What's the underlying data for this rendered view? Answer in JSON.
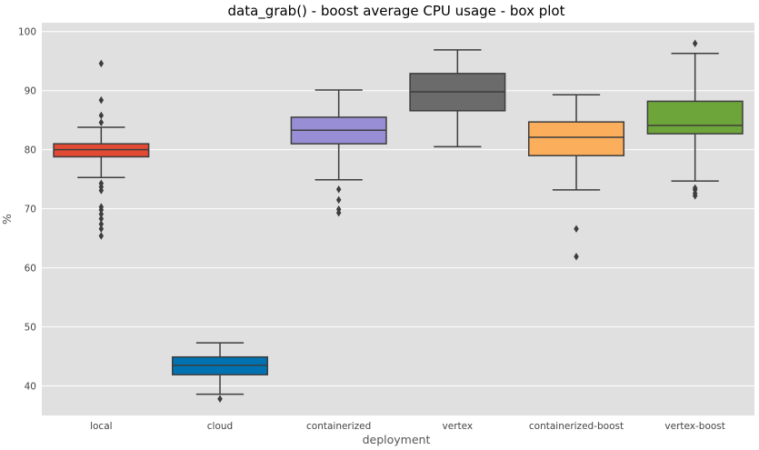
{
  "chart_data": {
    "type": "box",
    "title": "data_grab() - boost average CPU usage - box plot",
    "xlabel": "deployment",
    "ylabel": "%",
    "ylim": [
      35,
      101.5
    ],
    "yticks": [
      40,
      50,
      60,
      70,
      80,
      90,
      100
    ],
    "grid": true,
    "background": "#e0e0e0",
    "categories": [
      "local",
      "cloud",
      "containerized",
      "vertex",
      "containerized-boost",
      "vertex-boost"
    ],
    "boxes": [
      {
        "category": "local",
        "color": "#e24a33",
        "whisker_low": 75.3,
        "q1": 78.8,
        "median": 80.0,
        "q3": 81.0,
        "whisker_high": 83.8,
        "outliers": [
          65.4,
          66.6,
          67.4,
          68.3,
          69.1,
          69.8,
          70.3,
          73.1,
          73.7,
          74.3,
          84.6,
          85.8,
          88.4,
          94.6
        ]
      },
      {
        "category": "cloud",
        "color": "#0072b2",
        "whisker_low": 38.6,
        "q1": 41.9,
        "median": 43.5,
        "q3": 44.9,
        "whisker_high": 47.3,
        "outliers": [
          37.8
        ]
      },
      {
        "category": "containerized",
        "color": "#988ed5",
        "whisker_low": 74.9,
        "q1": 81.0,
        "median": 83.3,
        "q3": 85.5,
        "whisker_high": 90.1,
        "outliers": [
          69.3,
          69.9,
          71.5,
          73.3
        ]
      },
      {
        "category": "vertex",
        "color": "#6b6b6b",
        "whisker_low": 80.5,
        "q1": 86.6,
        "median": 89.8,
        "q3": 92.9,
        "whisker_high": 96.9,
        "outliers": []
      },
      {
        "category": "containerized-boost",
        "color": "#fbae5c",
        "whisker_low": 73.2,
        "q1": 79.0,
        "median": 82.1,
        "q3": 84.7,
        "whisker_high": 89.3,
        "outliers": [
          61.9,
          66.6
        ]
      },
      {
        "category": "vertex-boost",
        "color": "#6ea53a",
        "whisker_low": 74.7,
        "q1": 82.7,
        "median": 84.1,
        "q3": 88.2,
        "whisker_high": 96.3,
        "outliers": [
          72.2,
          72.6,
          73.2,
          73.5,
          98.0
        ]
      }
    ]
  }
}
